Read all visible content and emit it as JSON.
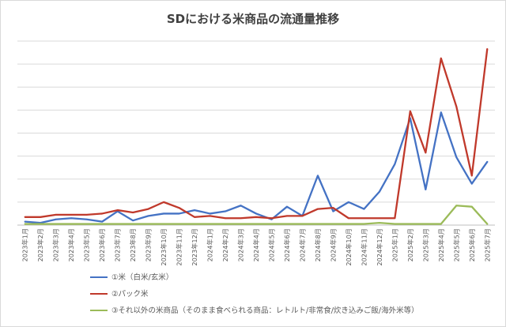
{
  "chart_data": {
    "type": "line",
    "title": "SDにおける米商品の流通量推移",
    "x": [
      "2023年1月",
      "2023年2月",
      "2023年3月",
      "2023年4月",
      "2023年5月",
      "2023年6月",
      "2023年7月",
      "2023年8月",
      "2023年9月",
      "2023年10月",
      "2023年11月",
      "2023年12月",
      "2024年1月",
      "2024年2月",
      "2024年3月",
      "2024年4月",
      "2024年5月",
      "2024年6月",
      "2024年7月",
      "2024年8月",
      "2024年9月",
      "2024年10月",
      "2024年11月",
      "2024年12月",
      "2025年1月",
      "2025年2月",
      "2025年3月",
      "2025年4月",
      "2025年5月",
      "2025年6月",
      "2025年7月"
    ],
    "series": [
      {
        "name": "①米（白米/玄米）",
        "color": "#4472c4",
        "values": [
          3,
          2,
          5,
          6,
          5,
          3,
          12,
          4,
          8,
          10,
          10,
          13,
          10,
          12,
          17,
          10,
          5,
          16,
          8,
          43,
          12,
          20,
          14,
          29,
          53,
          93,
          31,
          98,
          59,
          36,
          55
        ]
      },
      {
        "name": "②パック米",
        "color": "#c0392b",
        "values": [
          7,
          7,
          9,
          9,
          9,
          10,
          13,
          11,
          14,
          20,
          15,
          7,
          8,
          6,
          6,
          7,
          6,
          8,
          8,
          14,
          15,
          6,
          6,
          6,
          6,
          99,
          63,
          145,
          103,
          43,
          153
        ]
      },
      {
        "name": "③それ以外の米商品（そのまま食べられる商品：レトルト/非常食/炊き込みご飯/海外米等）",
        "color": "#9bbb59",
        "values": [
          1,
          1,
          1,
          1,
          1,
          1,
          1,
          1,
          1,
          1,
          1,
          1,
          1,
          1,
          1,
          1,
          1,
          1,
          1,
          1,
          1,
          1,
          1,
          2,
          1,
          1,
          1,
          1,
          17,
          16,
          1
        ]
      }
    ],
    "ylim": [
      0,
      160
    ],
    "grid": true,
    "y_tick_labels_visible": false,
    "legend_position": "bottom"
  }
}
